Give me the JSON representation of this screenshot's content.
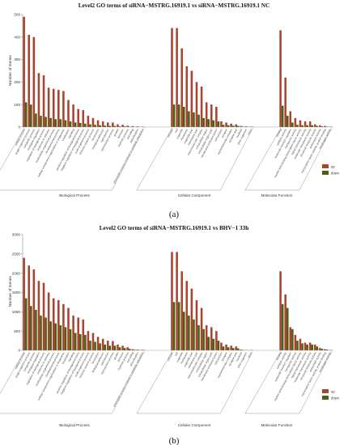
{
  "chart_data": [
    {
      "type": "bar",
      "title": "Level2 GO terms of siRNA−MSTRG.16919.1 vs siRNA−MSTRG.16919.1 NC",
      "panel_label": "(a)",
      "ylabel": "Number of Genes",
      "ylim": [
        0,
        500
      ],
      "yticks": [
        "0",
        "100",
        "200",
        "300",
        "400",
        "500"
      ],
      "groups": [
        "Biological Process",
        "Cellular Component",
        "Molecular Function"
      ],
      "categories": [
        "cellular process",
        "single-organism process",
        "metabolic process",
        "biological regulation",
        "regulation of biological process",
        "response to stimulus",
        "multicellular organismal process",
        "developmental process",
        "cellular component organization or biogenesis",
        "localization",
        "signaling",
        "positive regulation of biological process",
        "negative regulation of biological process",
        "multi-organism process",
        "immune system process",
        "locomotion",
        "biological adhesion",
        "reproduction",
        "reproductive process",
        "growth",
        "behavior",
        "rhythmic process",
        "cell killing",
        "detoxification",
        "phenotypic process involved in symbiotic interaction",
        "cell part",
        "cell",
        "organelle",
        "membrane",
        "organelle part",
        "membrane part",
        "macromolecular complex",
        "extracellular region",
        "extracellular region part",
        "membrane-enclosed lumen",
        "cell junction",
        "synapse",
        "supramolecular complex",
        "synapse part",
        "nucleoid",
        "other organism",
        "virion",
        "binding",
        "catalytic activity",
        "molecular function regulator",
        "transporter activity",
        "nucleic acid binding transcription factor activity",
        "signal transducer activity",
        "molecular transducer activity",
        "structural molecule activity",
        "antioxidant activity",
        "transcription factor activity, protein binding",
        "morphogen activity"
      ],
      "group_sizes": [
        25,
        17,
        11
      ],
      "series": [
        {
          "name": "up",
          "values": [
            490,
            410,
            400,
            240,
            230,
            175,
            170,
            165,
            160,
            120,
            100,
            80,
            75,
            50,
            40,
            30,
            25,
            20,
            20,
            12,
            10,
            6,
            4,
            3,
            2,
            440,
            440,
            350,
            270,
            250,
            200,
            180,
            110,
            100,
            90,
            25,
            20,
            15,
            12,
            5,
            3,
            2,
            430,
            220,
            70,
            40,
            30,
            25,
            25,
            12,
            8,
            5,
            2
          ]
        },
        {
          "name": "down",
          "values": [
            110,
            100,
            60,
            50,
            45,
            40,
            35,
            35,
            30,
            25,
            20,
            18,
            15,
            12,
            10,
            8,
            6,
            5,
            5,
            3,
            3,
            2,
            1,
            1,
            1,
            100,
            100,
            90,
            70,
            65,
            55,
            40,
            35,
            30,
            25,
            10,
            8,
            6,
            5,
            2,
            1,
            1,
            95,
            50,
            20,
            10,
            8,
            8,
            8,
            5,
            3,
            2,
            1
          ]
        }
      ],
      "legend": [
        "up",
        "down"
      ],
      "legend_position": "bottom-right",
      "colors": {
        "up": "#a8442f",
        "down": "#4e5f14"
      }
    },
    {
      "type": "bar",
      "title": "Level2 GO terms of siRNA−MSTRG.16919.1 vs BHV−1 33h",
      "panel_label": "(b)",
      "ylabel": "Number of Genes",
      "ylim": [
        0,
        3000
      ],
      "yticks": [
        "0",
        "500",
        "1000",
        "1500",
        "2000",
        "2500",
        "3000"
      ],
      "groups": [
        "Biological Process",
        "Cellular Component",
        "Molecular Function"
      ],
      "categories": [
        "cellular process",
        "single-organism process",
        "metabolic process",
        "biological regulation",
        "regulation of biological process",
        "response to stimulus",
        "multicellular organismal process",
        "developmental process",
        "cellular component organization or biogenesis",
        "localization",
        "signaling",
        "positive regulation of biological process",
        "negative regulation of biological process",
        "multi-organism process",
        "immune system process",
        "locomotion",
        "biological adhesion",
        "reproduction",
        "reproductive process",
        "growth",
        "behavior",
        "rhythmic process",
        "cell killing",
        "detoxification",
        "phenotypic process involved in symbiotic interaction",
        "cell part",
        "cell",
        "organelle",
        "membrane",
        "organelle part",
        "membrane part",
        "macromolecular complex",
        "extracellular region",
        "extracellular region part",
        "membrane-enclosed lumen",
        "cell junction",
        "synapse",
        "supramolecular complex",
        "synapse part",
        "nucleoid",
        "other organism",
        "virion",
        "binding",
        "catalytic activity",
        "molecular function regulator",
        "transporter activity",
        "nucleic acid binding transcription factor activity",
        "signal transducer activity",
        "molecular transducer activity",
        "structural molecule activity",
        "antioxidant activity",
        "transcription factor activity, protein binding",
        "morphogen activity"
      ],
      "group_sizes": [
        25,
        17,
        11
      ],
      "series": [
        {
          "name": "up",
          "values": [
            2400,
            2200,
            2100,
            1800,
            1750,
            1500,
            1350,
            1300,
            1200,
            1100,
            900,
            850,
            800,
            500,
            450,
            350,
            300,
            250,
            240,
            150,
            120,
            80,
            30,
            20,
            15,
            2550,
            2550,
            2050,
            1800,
            1600,
            1300,
            1100,
            650,
            600,
            500,
            200,
            150,
            120,
            100,
            20,
            10,
            8,
            2050,
            1450,
            600,
            400,
            300,
            200,
            200,
            150,
            60,
            30,
            10
          ]
        },
        {
          "name": "down",
          "values": [
            1350,
            1150,
            1050,
            900,
            850,
            750,
            700,
            650,
            600,
            550,
            450,
            420,
            400,
            250,
            220,
            180,
            150,
            120,
            120,
            80,
            60,
            40,
            15,
            10,
            8,
            1250,
            1250,
            1000,
            900,
            800,
            650,
            550,
            350,
            300,
            250,
            100,
            80,
            60,
            50,
            10,
            5,
            4,
            1200,
            1100,
            550,
            250,
            180,
            150,
            150,
            100,
            40,
            20,
            5
          ]
        }
      ],
      "legend": [
        "up",
        "down"
      ],
      "legend_position": "bottom-right",
      "colors": {
        "up": "#a8442f",
        "down": "#4e5f14"
      }
    }
  ]
}
